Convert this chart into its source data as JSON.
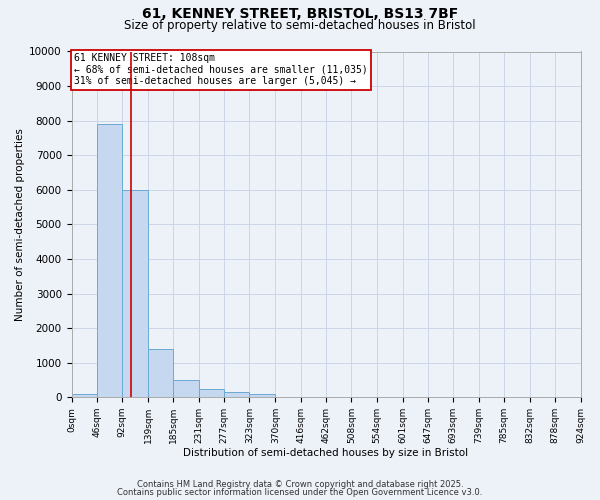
{
  "title_line1": "61, KENNEY STREET, BRISTOL, BS13 7BF",
  "title_line2": "Size of property relative to semi-detached houses in Bristol",
  "xlabel": "Distribution of semi-detached houses by size in Bristol",
  "ylabel": "Number of semi-detached properties",
  "bin_edges": [
    0,
    46,
    92,
    139,
    185,
    231,
    277,
    323,
    370,
    416,
    462,
    508,
    554,
    601,
    647,
    693,
    739,
    785,
    832,
    878,
    924
  ],
  "bar_heights": [
    100,
    7900,
    6000,
    1400,
    500,
    250,
    150,
    80,
    10,
    2,
    1,
    1,
    0,
    0,
    0,
    0,
    0,
    0,
    0,
    0
  ],
  "bar_color": "#c5d8f0",
  "bar_edge_color": "#6aaad4",
  "bar_linewidth": 0.7,
  "property_size": 108,
  "red_line_color": "#cc0000",
  "ylim": [
    0,
    10000
  ],
  "yticks": [
    0,
    1000,
    2000,
    3000,
    4000,
    5000,
    6000,
    7000,
    8000,
    9000,
    10000
  ],
  "annotation_text": "61 KENNEY STREET: 108sqm\n← 68% of semi-detached houses are smaller (11,035)\n31% of semi-detached houses are larger (5,045) →",
  "annotation_box_color": "#ffffff",
  "annotation_box_edge": "#cc0000",
  "grid_color": "#cdd5e8",
  "background_color": "#edf1f8",
  "footer_line1": "Contains HM Land Registry data © Crown copyright and database right 2025.",
  "footer_line2": "Contains public sector information licensed under the Open Government Licence v3.0."
}
